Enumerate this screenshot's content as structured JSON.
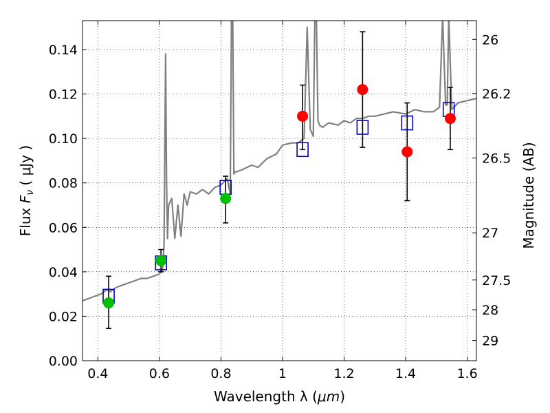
{
  "chart_data": {
    "type": "line",
    "xlabel": "Wavelength  λ (μm)",
    "ylabel": "Flux  F_ν  ( μJy )",
    "ylabel_parts": {
      "prefix": "Flux  ",
      "symbol": "F",
      "subscript": "ν",
      "suffix": "  ( μJy )"
    },
    "xlabel_parts": {
      "prefix": "Wavelength  λ (",
      "unit": "μm",
      "suffix": ")"
    },
    "y2label": "Magnitude (AB)",
    "xlim": [
      0.35,
      1.63
    ],
    "ylim": [
      0.0,
      0.153
    ],
    "grid": true,
    "x_ticks": [
      {
        "value": 0.4,
        "label": "0.4"
      },
      {
        "value": 0.6,
        "label": "0.6"
      },
      {
        "value": 0.8,
        "label": "0.8"
      },
      {
        "value": 1.0,
        "label": "1"
      },
      {
        "value": 1.2,
        "label": "1.2"
      },
      {
        "value": 1.4,
        "label": "1.4"
      },
      {
        "value": 1.6,
        "label": "1.6"
      }
    ],
    "y_ticks": [
      {
        "value": 0.0,
        "label": "0.00"
      },
      {
        "value": 0.02,
        "label": "0.02"
      },
      {
        "value": 0.04,
        "label": "0.04"
      },
      {
        "value": 0.06,
        "label": "0.06"
      },
      {
        "value": 0.08,
        "label": "0.08"
      },
      {
        "value": 0.1,
        "label": "0.10"
      },
      {
        "value": 0.12,
        "label": "0.12"
      },
      {
        "value": 0.14,
        "label": "0.14"
      }
    ],
    "y2_ticks": [
      {
        "mag": 26.0,
        "label": "26"
      },
      {
        "mag": 26.2,
        "label": "26.2"
      },
      {
        "mag": 26.5,
        "label": "26.5"
      },
      {
        "mag": 27.0,
        "label": "27"
      },
      {
        "mag": 27.5,
        "label": "27.5"
      },
      {
        "mag": 28.0,
        "label": "28"
      },
      {
        "mag": 29.0,
        "label": "29"
      }
    ],
    "colors": {
      "model": "#808080",
      "observed_optical": "#00c000",
      "observed_nir": "#ff0000",
      "model_bands": "#0000c0",
      "errorbar": "#000000"
    },
    "series": [
      {
        "type": "line",
        "color": "#808080",
        "x": [
          0.35,
          0.37,
          0.39,
          0.41,
          0.42,
          0.43,
          0.44,
          0.46,
          0.48,
          0.5,
          0.52,
          0.54,
          0.56,
          0.58,
          0.6,
          0.61,
          0.615,
          0.62,
          0.623,
          0.626,
          0.63,
          0.64,
          0.65,
          0.66,
          0.67,
          0.68,
          0.69,
          0.7,
          0.72,
          0.74,
          0.76,
          0.78,
          0.8,
          0.82,
          0.83,
          0.834,
          0.838,
          0.842,
          0.846,
          0.85,
          0.87,
          0.9,
          0.92,
          0.95,
          0.98,
          1.0,
          1.03,
          1.05,
          1.07,
          1.08,
          1.09,
          1.1,
          1.105,
          1.11,
          1.115,
          1.12,
          1.13,
          1.15,
          1.18,
          1.2,
          1.22,
          1.24,
          1.26,
          1.28,
          1.3,
          1.33,
          1.36,
          1.4,
          1.43,
          1.46,
          1.49,
          1.51,
          1.52,
          1.53,
          1.535,
          1.54,
          1.55,
          1.57,
          1.6,
          1.63
        ],
        "y": [
          0.027,
          0.028,
          0.029,
          0.03,
          0.031,
          0.032,
          0.031,
          0.033,
          0.034,
          0.035,
          0.036,
          0.037,
          0.037,
          0.038,
          0.039,
          0.041,
          0.052,
          0.138,
          0.083,
          0.055,
          0.07,
          0.073,
          0.055,
          0.07,
          0.056,
          0.075,
          0.07,
          0.076,
          0.075,
          0.077,
          0.075,
          0.078,
          0.079,
          0.082,
          0.075,
          0.155,
          0.155,
          0.084,
          0.085,
          0.085,
          0.086,
          0.088,
          0.087,
          0.091,
          0.093,
          0.097,
          0.098,
          0.098,
          0.1,
          0.15,
          0.104,
          0.101,
          0.155,
          0.155,
          0.108,
          0.106,
          0.105,
          0.107,
          0.106,
          0.108,
          0.107,
          0.109,
          0.109,
          0.11,
          0.11,
          0.111,
          0.112,
          0.111,
          0.113,
          0.112,
          0.112,
          0.114,
          0.155,
          0.115,
          0.115,
          0.155,
          0.113,
          0.116,
          0.117,
          0.118
        ]
      },
      {
        "type": "squares",
        "name": "",
        "color": "#0000c0",
        "x": [
          0.435,
          0.605,
          0.815,
          1.065,
          1.26,
          1.405,
          1.54
        ],
        "y": [
          0.029,
          0.044,
          0.078,
          0.095,
          0.105,
          0.107,
          0.113
        ]
      },
      {
        "type": "points",
        "name": "",
        "color": "#00c000",
        "x": [
          0.435,
          0.605,
          0.815
        ],
        "y": [
          0.026,
          0.045,
          0.073
        ],
        "yerr": [
          [
            0.0115,
            0.012
          ],
          [
            0.005,
            0.005
          ],
          [
            0.011,
            0.01
          ]
        ]
      },
      {
        "type": "points",
        "name": "",
        "color": "#ff0000",
        "x": [
          1.065,
          1.26,
          1.405,
          1.545
        ],
        "y": [
          0.11,
          0.122,
          0.094,
          0.109
        ],
        "yerr": [
          [
            0.015,
            0.014
          ],
          [
            0.026,
            0.026
          ],
          [
            0.022,
            0.022
          ],
          [
            0.014,
            0.014
          ]
        ]
      }
    ]
  }
}
